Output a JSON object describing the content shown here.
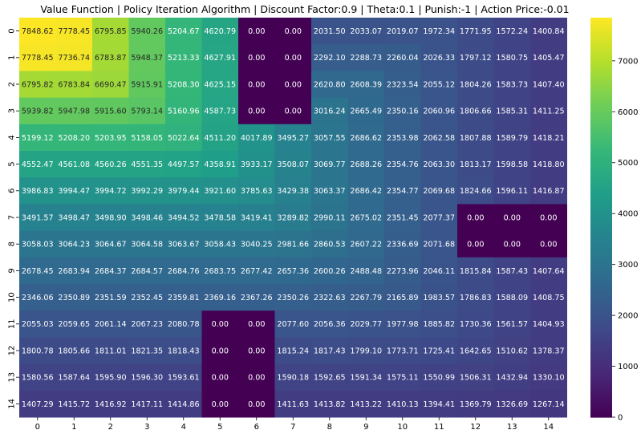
{
  "chart_data": {
    "type": "heatmap",
    "title": "Value Function | Policy Iteration Algorithm | Discount Factor:0.9 | Theta:0.1 | Punish:-1 | Action Price:-0.01",
    "xlabel": "",
    "ylabel": "",
    "x_tick_labels": [
      "0",
      "1",
      "2",
      "3",
      "4",
      "5",
      "6",
      "7",
      "8",
      "9",
      "10",
      "11",
      "12",
      "13",
      "14"
    ],
    "y_tick_labels": [
      "0",
      "1",
      "2",
      "3",
      "4",
      "5",
      "6",
      "7",
      "8",
      "9",
      "10",
      "11",
      "12",
      "13",
      "14"
    ],
    "colormap": "viridis",
    "vmin": 0,
    "vmax": 7848.62,
    "colorbar_ticks": [
      0,
      1000,
      2000,
      3000,
      4000,
      5000,
      6000,
      7000
    ],
    "value_format": "2 decimals",
    "values": [
      [
        7848.62,
        7778.45,
        6795.85,
        5940.26,
        5204.67,
        4620.79,
        0.0,
        0.0,
        2031.5,
        2033.07,
        2019.07,
        1972.34,
        1771.95,
        1572.24,
        1400.84
      ],
      [
        7778.45,
        7736.74,
        6783.87,
        5948.37,
        5213.33,
        4627.91,
        0.0,
        0.0,
        2292.1,
        2288.73,
        2260.04,
        2026.33,
        1797.12,
        1580.75,
        1405.47
      ],
      [
        6795.82,
        6783.84,
        6690.47,
        5915.91,
        5208.3,
        4625.15,
        0.0,
        0.0,
        2620.8,
        2608.39,
        2323.54,
        2055.12,
        1804.26,
        1583.73,
        1407.4
      ],
      [
        5939.82,
        5947.98,
        5915.6,
        5793.14,
        5160.96,
        4587.73,
        0.0,
        0.0,
        3016.24,
        2665.49,
        2350.16,
        2060.96,
        1806.66,
        1585.31,
        1411.25
      ],
      [
        5199.12,
        5208.2,
        5203.95,
        5158.05,
        5022.64,
        4511.2,
        4017.89,
        3495.27,
        3057.55,
        2686.62,
        2353.98,
        2062.58,
        1807.88,
        1589.79,
        1418.21
      ],
      [
        4552.47,
        4561.08,
        4560.26,
        4551.35,
        4497.57,
        4358.91,
        3933.17,
        3508.07,
        3069.77,
        2688.26,
        2354.76,
        2063.3,
        1813.17,
        1598.58,
        1418.8
      ],
      [
        3986.83,
        3994.47,
        3994.72,
        3992.29,
        3979.44,
        3921.6,
        3785.63,
        3429.38,
        3063.37,
        2686.42,
        2354.77,
        2069.68,
        1824.66,
        1596.11,
        1416.87
      ],
      [
        3491.57,
        3498.47,
        3498.9,
        3498.46,
        3494.52,
        3478.58,
        3419.41,
        3289.82,
        2990.11,
        2675.02,
        2351.45,
        2077.37,
        0.0,
        0.0,
        0.0
      ],
      [
        3058.03,
        3064.23,
        3064.67,
        3064.58,
        3063.67,
        3058.43,
        3040.25,
        2981.66,
        2860.53,
        2607.22,
        2336.69,
        2071.68,
        0.0,
        0.0,
        0.0
      ],
      [
        2678.45,
        2683.94,
        2684.37,
        2684.57,
        2684.76,
        2683.75,
        2677.42,
        2657.36,
        2600.26,
        2488.48,
        2273.96,
        2046.11,
        1815.84,
        1587.43,
        1407.64
      ],
      [
        2346.06,
        2350.89,
        2351.59,
        2352.45,
        2359.81,
        2369.16,
        2367.26,
        2350.26,
        2322.63,
        2267.79,
        2165.89,
        1983.57,
        1786.83,
        1588.09,
        1408.75
      ],
      [
        2055.03,
        2059.65,
        2061.14,
        2067.23,
        2080.78,
        0.0,
        0.0,
        2077.6,
        2056.36,
        2029.77,
        1977.98,
        1885.82,
        1730.36,
        1561.57,
        1404.93
      ],
      [
        1800.78,
        1805.66,
        1811.01,
        1821.35,
        1818.43,
        0.0,
        0.0,
        1815.24,
        1817.43,
        1799.1,
        1773.71,
        1725.41,
        1642.65,
        1510.62,
        1378.37
      ],
      [
        1580.56,
        1587.64,
        1595.9,
        1596.3,
        1593.61,
        0.0,
        0.0,
        1590.18,
        1592.65,
        1591.34,
        1575.11,
        1550.99,
        1506.31,
        1432.94,
        1330.1
      ],
      [
        1407.29,
        1415.72,
        1416.92,
        1417.11,
        1414.86,
        0.0,
        0.0,
        1411.63,
        1413.82,
        1413.22,
        1410.13,
        1394.41,
        1369.79,
        1326.69,
        1267.14
      ]
    ]
  }
}
